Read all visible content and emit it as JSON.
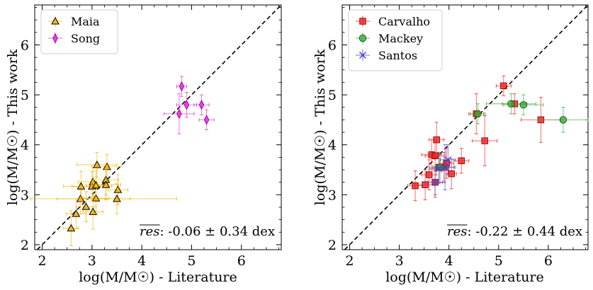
{
  "chart_data": [
    {
      "type": "scatter",
      "xlabel": "log(M/M☉) - Literature",
      "ylabel": "log(M/M☉) - This work",
      "xlim": [
        1.85,
        6.8
      ],
      "ylim": [
        1.9,
        6.8
      ],
      "xticks": [
        "2",
        "3",
        "4",
        "5",
        "6"
      ],
      "yticks": [
        "2",
        "3",
        "4",
        "5",
        "6"
      ],
      "one_to_one_line": true,
      "legend_position": "upper-left",
      "annotation": {
        "label": "res",
        "text": ": -0.06 ± 0.34 dex"
      },
      "series": [
        {
          "name": "Maia",
          "marker": "triangle",
          "color": "#f0b000",
          "edge": "#b07800",
          "points": [
            {
              "x": 2.58,
              "y": 2.33,
              "xerr": 0.15,
              "yerr": 0.35
            },
            {
              "x": 2.68,
              "y": 2.62,
              "xerr": 0.2,
              "yerr": 0.3
            },
            {
              "x": 2.77,
              "y": 2.92,
              "xerr": 1.0,
              "yerr": 0.3
            },
            {
              "x": 2.88,
              "y": 2.76,
              "xerr": 0.2,
              "yerr": 0.3
            },
            {
              "x": 2.78,
              "y": 3.17,
              "xerr": 0.35,
              "yerr": 0.3
            },
            {
              "x": 3.02,
              "y": 2.66,
              "xerr": 0.2,
              "yerr": 0.35
            },
            {
              "x": 3.08,
              "y": 2.93,
              "xerr": 0.25,
              "yerr": 0.3
            },
            {
              "x": 3.0,
              "y": 3.17,
              "xerr": 0.4,
              "yerr": 0.3
            },
            {
              "x": 3.02,
              "y": 3.26,
              "xerr": 0.3,
              "yerr": 0.3
            },
            {
              "x": 3.08,
              "y": 3.19,
              "xerr": 0.2,
              "yerr": 0.3
            },
            {
              "x": 3.1,
              "y": 3.6,
              "xerr": 0.4,
              "yerr": 0.25
            },
            {
              "x": 3.3,
              "y": 3.56,
              "xerr": 0.3,
              "yerr": 0.25
            },
            {
              "x": 3.28,
              "y": 3.3,
              "xerr": 0.25,
              "yerr": 0.3
            },
            {
              "x": 3.28,
              "y": 3.2,
              "xerr": 0.3,
              "yerr": 0.3
            },
            {
              "x": 3.52,
              "y": 3.1,
              "xerr": 0.2,
              "yerr": 0.3
            },
            {
              "x": 3.5,
              "y": 2.92,
              "xerr": 1.2,
              "yerr": 0.3
            }
          ]
        },
        {
          "name": "Song",
          "marker": "thin_diamond",
          "color": "#dd33dd",
          "edge": "#aa00aa",
          "points": [
            {
              "x": 4.8,
              "y": 5.17,
              "xerr": 0.1,
              "yerr": 0.2
            },
            {
              "x": 4.75,
              "y": 4.62,
              "xerr": 0.3,
              "yerr": 0.4
            },
            {
              "x": 4.9,
              "y": 4.8,
              "xerr": 0.2,
              "yerr": 0.25
            },
            {
              "x": 5.2,
              "y": 4.8,
              "xerr": 0.15,
              "yerr": 0.2
            },
            {
              "x": 5.3,
              "y": 4.5,
              "xerr": 0.15,
              "yerr": 0.2
            }
          ]
        }
      ]
    },
    {
      "type": "scatter",
      "xlabel": "log(M/M☉) - Literature",
      "ylabel": "log(M/M☉) - This work",
      "xlim": [
        1.85,
        6.8
      ],
      "ylim": [
        1.9,
        6.8
      ],
      "xticks": [
        "2",
        "3",
        "4",
        "5",
        "6"
      ],
      "yticks": [
        "2",
        "3",
        "4",
        "5",
        "6"
      ],
      "one_to_one_line": true,
      "legend_position": "upper-left",
      "annotation": {
        "label": "res",
        "text": ": -0.22 ± 0.44 dex"
      },
      "series": [
        {
          "name": "Carvalho",
          "marker": "square",
          "color": "#ee2222",
          "edge": "#aa0000",
          "points": [
            {
              "x": 3.32,
              "y": 3.18,
              "xerr": 0.15,
              "yerr": 0.3
            },
            {
              "x": 3.52,
              "y": 3.2,
              "xerr": 0.2,
              "yerr": 0.3
            },
            {
              "x": 3.6,
              "y": 3.4,
              "xerr": 0.15,
              "yerr": 0.3
            },
            {
              "x": 3.65,
              "y": 3.8,
              "xerr": 0.2,
              "yerr": 0.3
            },
            {
              "x": 3.72,
              "y": 3.25,
              "xerr": 0.15,
              "yerr": 0.3
            },
            {
              "x": 3.72,
              "y": 3.78,
              "xerr": 0.2,
              "yerr": 0.3
            },
            {
              "x": 3.75,
              "y": 4.1,
              "xerr": 0.15,
              "yerr": 0.35
            },
            {
              "x": 3.8,
              "y": 3.55,
              "xerr": 0.2,
              "yerr": 0.3
            },
            {
              "x": 3.9,
              "y": 3.55,
              "xerr": 0.2,
              "yerr": 0.3
            },
            {
              "x": 3.95,
              "y": 3.63,
              "xerr": 0.15,
              "yerr": 0.3
            },
            {
              "x": 4.05,
              "y": 3.42,
              "xerr": 0.1,
              "yerr": 0.3
            },
            {
              "x": 4.25,
              "y": 3.68,
              "xerr": 0.15,
              "yerr": 0.25
            },
            {
              "x": 4.55,
              "y": 4.62,
              "xerr": 0.15,
              "yerr": 0.4
            },
            {
              "x": 4.72,
              "y": 4.08,
              "xerr": 0.25,
              "yerr": 0.5
            },
            {
              "x": 5.1,
              "y": 5.18,
              "xerr": 0.15,
              "yerr": 0.2
            },
            {
              "x": 5.32,
              "y": 4.82,
              "xerr": 0.25,
              "yerr": 0.2
            },
            {
              "x": 5.85,
              "y": 4.5,
              "xerr": 0.4,
              "yerr": 0.45
            }
          ]
        },
        {
          "name": "Mackey",
          "marker": "circle",
          "color": "#33aa33",
          "edge": "#116611",
          "points": [
            {
              "x": 3.82,
              "y": 3.55,
              "xerr": 0.15,
              "yerr": 0.3
            },
            {
              "x": 4.58,
              "y": 4.62,
              "xerr": 0.15,
              "yerr": 0.2
            },
            {
              "x": 5.25,
              "y": 4.82,
              "xerr": 0.5,
              "yerr": 0.2
            },
            {
              "x": 5.5,
              "y": 4.8,
              "xerr": 0.4,
              "yerr": 0.2
            },
            {
              "x": 6.3,
              "y": 4.5,
              "xerr": 0.5,
              "yerr": 0.25
            }
          ]
        },
        {
          "name": "Santos",
          "marker": "x",
          "color": "#4444cc",
          "edge": "#2222aa",
          "points": [
            {
              "x": 3.72,
              "y": 3.25,
              "xerr": 0.2,
              "yerr": 0.25
            },
            {
              "x": 3.8,
              "y": 3.52,
              "xerr": 0.2,
              "yerr": 0.3
            },
            {
              "x": 3.92,
              "y": 3.55,
              "xerr": 0.2,
              "yerr": 0.45
            },
            {
              "x": 3.98,
              "y": 3.7,
              "xerr": 0.15,
              "yerr": 0.3
            }
          ]
        }
      ]
    }
  ]
}
